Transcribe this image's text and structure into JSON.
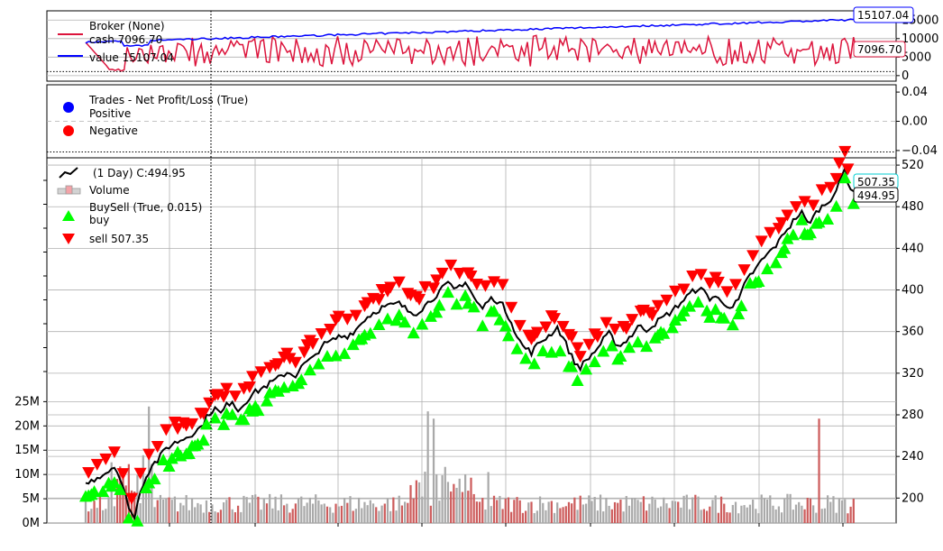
{
  "colors": {
    "cash": "#dc143c",
    "value": "#0000ff",
    "positive": "#0000ff",
    "negative": "#ff0000",
    "price": "#000000",
    "buy": "#00ff00",
    "sell": "#ff0000",
    "vol_up": "#a9a9a9",
    "vol_down": "#cd5c5c",
    "grid": "#b0b0b0"
  },
  "chart_data": [
    {
      "type": "line",
      "legend": [
        "Broker (None)",
        "cash 7096.70",
        "value 15107.04"
      ],
      "series": [
        {
          "name": "cash",
          "last_label": "7096.70",
          "last": 7096.7
        },
        {
          "name": "value",
          "last_label": "15107.04",
          "last": 15107.04
        }
      ],
      "yticks": [
        "0",
        "5000",
        "10000",
        "15000"
      ],
      "ylim": [
        -1500,
        17500
      ],
      "grid": true
    },
    {
      "type": "scatter",
      "legend": [
        "Trades - Net Profit/Loss (True)",
        "Positive",
        "Negative"
      ],
      "yticks": [
        "0.04",
        "0.00",
        "−0.04"
      ],
      "ylim": [
        -0.05,
        0.05
      ],
      "grid": true
    },
    {
      "type": "line",
      "legend": [
        "(1 Day) C:494.95",
        "Volume",
        "BuySell (True, 0.015)",
        "buy",
        "sell 507.35"
      ],
      "price_labels": {
        "sell": "507.35",
        "close": "494.95"
      },
      "yticks": [
        "200",
        "240",
        "280",
        "320",
        "360",
        "400",
        "440",
        "480",
        "520"
      ],
      "ylim": [
        176,
        527
      ],
      "volume_ticks": [
        "0M",
        "5M",
        "10M",
        "15M",
        "20M",
        "25M"
      ],
      "volume_max_millions": 26,
      "price_path": [
        [
          0,
          213
        ],
        [
          4,
          220
        ],
        [
          8,
          226
        ],
        [
          10,
          232
        ],
        [
          12,
          218
        ],
        [
          14,
          200
        ],
        [
          16,
          186
        ],
        [
          17,
          180
        ],
        [
          19,
          208
        ],
        [
          21,
          220
        ],
        [
          23,
          232
        ],
        [
          25,
          236
        ],
        [
          28,
          248
        ],
        [
          31,
          253
        ],
        [
          34,
          257
        ],
        [
          37,
          262
        ],
        [
          40,
          268
        ],
        [
          43,
          282
        ],
        [
          45,
          286
        ],
        [
          47,
          281
        ],
        [
          49,
          289
        ],
        [
          51,
          294
        ],
        [
          53,
          284
        ],
        [
          55,
          291
        ],
        [
          58,
          300
        ],
        [
          61,
          305
        ],
        [
          64,
          310
        ],
        [
          67,
          315
        ],
        [
          70,
          321
        ],
        [
          73,
          318
        ],
        [
          76,
          329
        ],
        [
          79,
          334
        ],
        [
          82,
          346
        ],
        [
          85,
          350
        ],
        [
          88,
          355
        ],
        [
          91,
          356
        ],
        [
          94,
          362
        ],
        [
          97,
          372
        ],
        [
          100,
          378
        ],
        [
          103,
          383
        ],
        [
          106,
          385
        ],
        [
          109,
          387
        ],
        [
          112,
          380
        ],
        [
          115,
          378
        ],
        [
          118,
          385
        ],
        [
          121,
          393
        ],
        [
          124,
          401
        ],
        [
          126,
          406
        ],
        [
          128,
          400
        ],
        [
          130,
          404
        ],
        [
          132,
          408
        ],
        [
          134,
          398
        ],
        [
          136,
          388
        ],
        [
          138,
          382
        ],
        [
          140,
          390
        ],
        [
          142,
          392
        ],
        [
          145,
          385
        ],
        [
          148,
          370
        ],
        [
          150,
          355
        ],
        [
          152,
          346
        ],
        [
          155,
          340
        ],
        [
          158,
          350
        ],
        [
          161,
          356
        ],
        [
          164,
          364
        ],
        [
          166,
          354
        ],
        [
          168,
          342
        ],
        [
          170,
          330
        ],
        [
          172,
          326
        ],
        [
          174,
          332
        ],
        [
          176,
          338
        ],
        [
          178,
          344
        ],
        [
          180,
          352
        ],
        [
          182,
          358
        ],
        [
          184,
          350
        ],
        [
          186,
          346
        ],
        [
          188,
          352
        ],
        [
          190,
          357
        ],
        [
          192,
          365
        ],
        [
          195,
          362
        ],
        [
          198,
          368
        ],
        [
          201,
          374
        ],
        [
          204,
          380
        ],
        [
          207,
          388
        ],
        [
          210,
          396
        ],
        [
          213,
          402
        ],
        [
          215,
          398
        ],
        [
          217,
          392
        ],
        [
          219,
          394
        ],
        [
          221,
          388
        ],
        [
          223,
          386
        ],
        [
          225,
          384
        ],
        [
          227,
          390
        ],
        [
          229,
          404
        ],
        [
          231,
          414
        ],
        [
          233,
          420
        ],
        [
          235,
          428
        ],
        [
          237,
          434
        ],
        [
          239,
          440
        ],
        [
          241,
          446
        ],
        [
          243,
          456
        ],
        [
          245,
          462
        ],
        [
          247,
          470
        ],
        [
          249,
          474
        ],
        [
          251,
          464
        ],
        [
          253,
          470
        ],
        [
          255,
          478
        ],
        [
          257,
          482
        ],
        [
          259,
          488
        ],
        [
          261,
          496
        ],
        [
          262,
          502
        ],
        [
          263,
          510
        ],
        [
          264,
          516
        ],
        [
          265,
          505
        ],
        [
          266,
          497
        ],
        [
          267,
          494.95
        ]
      ],
      "price_max_index": 268
    }
  ]
}
